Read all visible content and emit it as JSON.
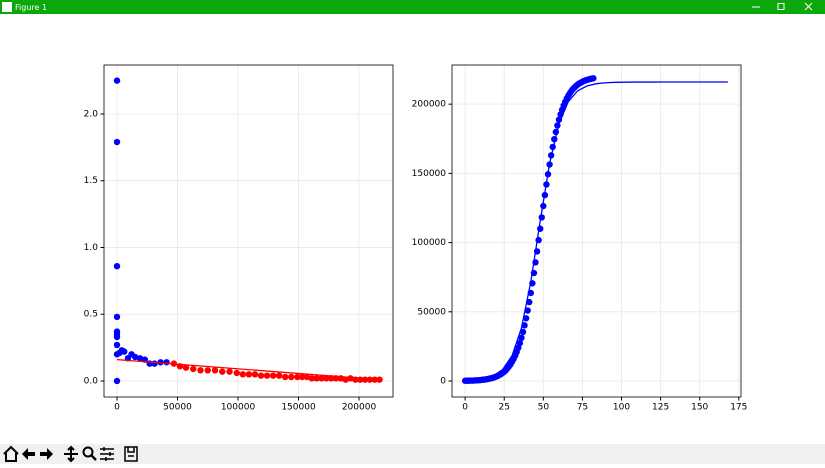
{
  "window": {
    "title": "Figure 1"
  },
  "chart_data": [
    {
      "type": "scatter",
      "grid": true,
      "xlim": [
        -10744,
        228099
      ],
      "ylim": [
        -0.12,
        2.367
      ],
      "xticks": [
        0,
        50000,
        100000,
        150000,
        200000
      ],
      "yticks": [
        {
          "value": 0,
          "label": "0.0"
        },
        0.5,
        {
          "value": 1,
          "label": "1.0"
        },
        1.5,
        {
          "value": 2,
          "label": "2.0"
        }
      ],
      "series": [
        {
          "type": "scatter",
          "color": "#0000ff",
          "x": [
            0,
            0,
            0,
            0,
            0,
            0,
            0,
            0,
            0,
            0,
            2000,
            4000,
            6000,
            9000,
            12000,
            15000,
            19000,
            23000,
            27000,
            31000,
            36000,
            41000
          ],
          "values": [
            2.25,
            1.79,
            0.86,
            0.48,
            0.37,
            0.35,
            0.33,
            0.27,
            0.2,
            0,
            0.21,
            0.23,
            0.22,
            0.17,
            0.2,
            0.18,
            0.17,
            0.16,
            0.13,
            0.13,
            0.14,
            0.14
          ]
        },
        {
          "type": "scatter",
          "color": "#ff0000",
          "x": [
            47000,
            52000,
            57000,
            63000,
            69000,
            75000,
            81000,
            87000,
            93000,
            99000,
            104000,
            109000,
            114000,
            119000,
            124000,
            129000,
            134000,
            139000,
            144000,
            149000,
            153000,
            157000,
            161000,
            165000,
            169000,
            173000,
            177000,
            181000,
            185000,
            189000,
            193000,
            197000,
            201000,
            205000,
            209000,
            213000,
            217000
          ],
          "values": [
            0.13,
            0.11,
            0.1,
            0.09,
            0.08,
            0.08,
            0.08,
            0.07,
            0.07,
            0.06,
            0.05,
            0.05,
            0.05,
            0.04,
            0.04,
            0.04,
            0.04,
            0.03,
            0.03,
            0.03,
            0.03,
            0.03,
            0.02,
            0.02,
            0.02,
            0.02,
            0.02,
            0.02,
            0.02,
            0.01,
            0.02,
            0.01,
            0.01,
            0.01,
            0.01,
            0.01,
            0.01
          ]
        },
        {
          "type": "line",
          "color": "#ff0000",
          "x": [
            0,
            217000
          ],
          "values": [
            0.16,
            0.01
          ]
        }
      ]
    },
    {
      "type": "scatter",
      "grid": true,
      "xlim": [
        -8.4,
        176.4
      ],
      "ylim": [
        -11560,
        228300
      ],
      "xticks": [
        0,
        25,
        50,
        75,
        100,
        125,
        150,
        175
      ],
      "yticks": [
        0,
        50000,
        100000,
        150000,
        200000
      ],
      "series": [
        {
          "type": "scatter",
          "color": "#0000ff",
          "x": [
            0,
            1,
            2,
            3,
            4,
            5,
            6,
            7,
            8,
            9,
            10,
            11,
            12,
            13,
            14,
            15,
            16,
            17,
            18,
            19,
            20,
            21,
            22,
            23,
            24,
            25,
            26,
            27,
            28,
            29,
            30,
            31,
            32,
            33,
            34,
            35,
            36,
            37,
            38,
            39,
            40,
            41,
            42,
            43,
            44,
            45,
            46,
            47,
            48,
            49,
            50,
            51,
            52,
            53,
            54,
            55,
            56,
            57,
            58,
            59,
            60,
            61,
            62,
            63,
            64,
            65,
            66,
            67,
            68,
            69,
            70,
            71,
            72,
            73,
            74,
            75,
            76,
            77,
            78,
            79,
            80,
            81,
            82
          ],
          "values": [
            200,
            200,
            200,
            300,
            300,
            300,
            400,
            500,
            500,
            600,
            700,
            900,
            1000,
            1100,
            1300,
            1600,
            1800,
            2100,
            2400,
            2800,
            3300,
            3800,
            4400,
            5100,
            5900,
            6800,
            7800,
            9100,
            10500,
            12000,
            13900,
            15900,
            18300,
            21000,
            24000,
            27400,
            31200,
            35400,
            40200,
            45300,
            50900,
            57000,
            63600,
            70600,
            78000,
            85700,
            93600,
            101800,
            110000,
            118200,
            126400,
            134300,
            142000,
            149400,
            156400,
            163000,
            169100,
            174700,
            179900,
            184600,
            188800,
            192600,
            196000,
            199000,
            201700,
            204100,
            206200,
            208000,
            209600,
            211000,
            212200,
            213200,
            214200,
            215000,
            215600,
            216200,
            216800,
            217200,
            217600,
            217900,
            218200,
            218500,
            218700
          ]
        },
        {
          "type": "line",
          "color": "#0000ff",
          "x": [
            0,
            6,
            12,
            18,
            24,
            30,
            36,
            42,
            48,
            54,
            60,
            66,
            72,
            78,
            84,
            90,
            96,
            102,
            108,
            114,
            120,
            126,
            132,
            138,
            144,
            150,
            156,
            162,
            168
          ],
          "values": [
            300,
            700,
            1600,
            3700,
            8300,
            18300,
            38200,
            71700,
            115600,
            157100,
            185900,
            201900,
            209700,
            213200,
            214800,
            215500,
            215800,
            215900,
            215960,
            215980,
            215990,
            216000,
            216000,
            216000,
            216000,
            216000,
            216000,
            216000,
            216000
          ]
        }
      ]
    }
  ]
}
